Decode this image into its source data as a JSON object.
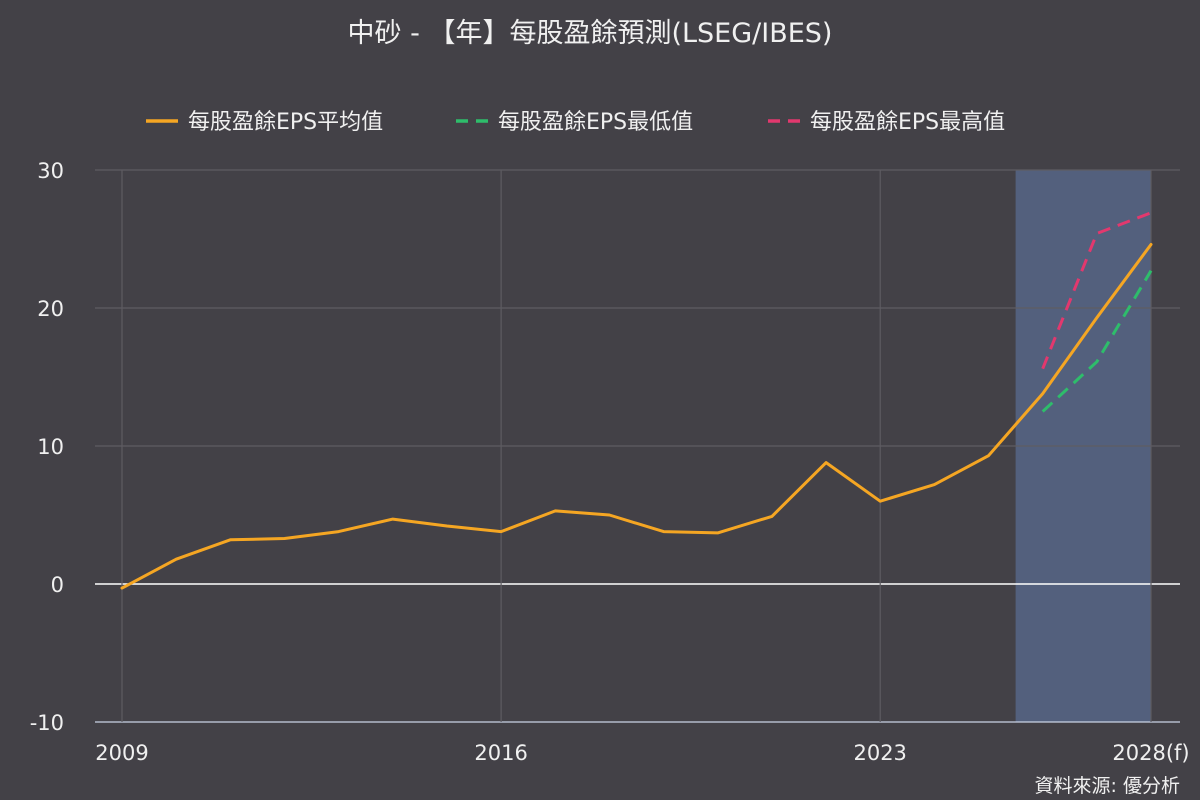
{
  "chart_data": {
    "type": "line",
    "title": "中砂 - 【年】每股盈餘預測(LSEG/IBES)",
    "source": "資料來源: 優分析",
    "x": [
      2009,
      2010,
      2011,
      2012,
      2013,
      2014,
      2015,
      2016,
      2017,
      2018,
      2019,
      2020,
      2021,
      2022,
      2023,
      2024,
      2025,
      2026,
      2027,
      2028
    ],
    "x_ticks": [
      {
        "value": 2009,
        "label": "2009"
      },
      {
        "value": 2016,
        "label": "2016"
      },
      {
        "value": 2023,
        "label": "2023"
      },
      {
        "value": 2028,
        "label": "2028(f)"
      }
    ],
    "xlim": [
      2009,
      2028
    ],
    "ylim": [
      -10,
      30
    ],
    "y_ticks": [
      -10,
      0,
      10,
      20,
      30
    ],
    "grid": true,
    "legend_position": "top",
    "forecast_region": [
      2026,
      2028
    ],
    "colors": {
      "background": "#434147",
      "grid": "#5e5c62",
      "zero_line": "#ffffff",
      "forecast_band": "#53607d"
    },
    "series": [
      {
        "name": "每股盈餘EPS平均值",
        "color": "#f5a623",
        "dash": "solid",
        "x": [
          2009,
          2010,
          2011,
          2012,
          2013,
          2014,
          2015,
          2016,
          2017,
          2018,
          2019,
          2020,
          2021,
          2022,
          2023,
          2024,
          2025,
          2026,
          2027,
          2028
        ],
        "values": [
          -0.3,
          1.8,
          3.2,
          3.3,
          3.8,
          4.7,
          4.2,
          3.8,
          5.3,
          5.0,
          3.8,
          3.7,
          4.9,
          8.8,
          6.0,
          7.2,
          9.3,
          13.8,
          19.3,
          24.6
        ]
      },
      {
        "name": "每股盈餘EPS最低值",
        "color": "#2ebd6b",
        "dash": "dashed",
        "x": [
          2026,
          2027,
          2028
        ],
        "values": [
          12.5,
          16.1,
          22.7
        ]
      },
      {
        "name": "每股盈餘EPS最高值",
        "color": "#e2386e",
        "dash": "dashed",
        "x": [
          2026,
          2027,
          2028
        ],
        "values": [
          15.6,
          25.4,
          26.9
        ]
      }
    ]
  }
}
